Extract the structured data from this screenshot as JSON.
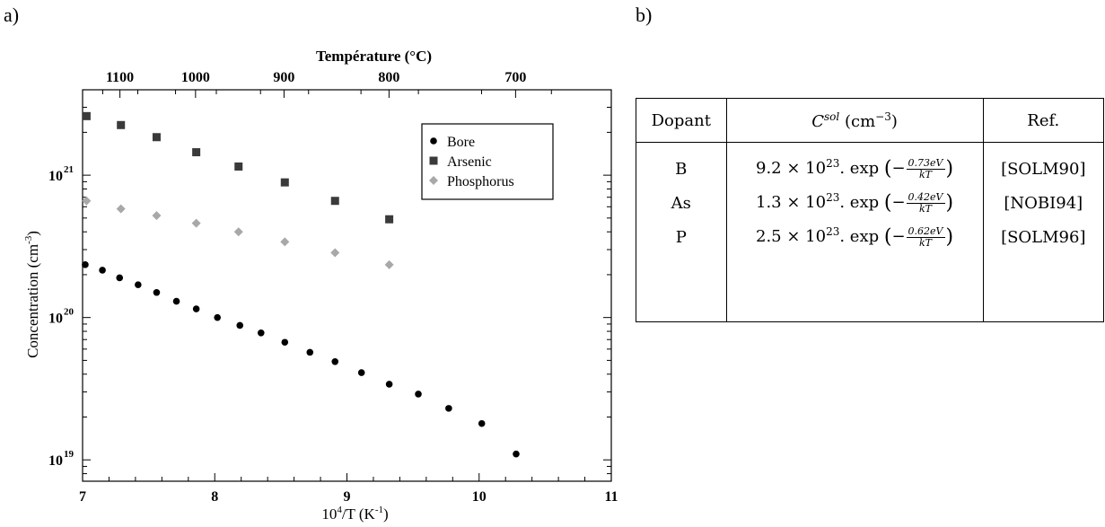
{
  "labels": {
    "a": "a)",
    "b": "b)"
  },
  "chart_data": {
    "type": "scatter",
    "top_axis_title": "Température (°C)",
    "top_ticks": [
      "1100",
      "1000",
      "900",
      "800",
      "700"
    ],
    "top_tick_celsius": [
      1100,
      1000,
      900,
      800,
      700
    ],
    "xlabel_base": "10",
    "xlabel_exp": "4",
    "xlabel_mid": "/T (K",
    "xlabel_exp2": "-1",
    "xlabel_end": ")",
    "ylabel_main": "Concentration (cm",
    "ylabel_exp": "-3",
    "ylabel_end": ")",
    "xlim": [
      7,
      11
    ],
    "ylim_log10": [
      18.85,
      21.6
    ],
    "x_ticks": [
      7,
      8,
      9,
      10,
      11
    ],
    "y_ticks": [
      {
        "value": 19,
        "base": "10",
        "exp": "19"
      },
      {
        "value": 20,
        "base": "10",
        "exp": "20"
      },
      {
        "value": 21,
        "base": "10",
        "exp": "21"
      }
    ],
    "legend_position": "top-right",
    "series": [
      {
        "name": "Bore",
        "marker": "circle",
        "color": "#000000",
        "x": [
          7.02,
          7.15,
          7.28,
          7.42,
          7.56,
          7.71,
          7.86,
          8.02,
          8.19,
          8.35,
          8.53,
          8.72,
          8.91,
          9.11,
          9.32,
          9.54,
          9.77,
          10.02,
          10.28
        ],
        "y": [
          2.35e+20,
          2.15e+20,
          1.9e+20,
          1.7e+20,
          1.5e+20,
          1.3e+20,
          1.15e+20,
          1e+20,
          8.8e+19,
          7.8e+19,
          6.7e+19,
          5.7e+19,
          4.9e+19,
          4.1e+19,
          3.4e+19,
          2.9e+19,
          2.3e+19,
          1.8e+19,
          1.1e+19
        ]
      },
      {
        "name": "Arsenic",
        "marker": "square",
        "color": "#3a3a3a",
        "x": [
          7.03,
          7.29,
          7.56,
          7.86,
          8.18,
          8.53,
          8.91,
          9.32
        ],
        "y": [
          2.6e+21,
          2.25e+21,
          1.85e+21,
          1.45e+21,
          1.15e+21,
          8.9e+20,
          6.6e+20,
          4.9e+20
        ]
      },
      {
        "name": "Phosphorus",
        "marker": "diamond",
        "color": "#a8a8a8",
        "x": [
          7.03,
          7.29,
          7.56,
          7.86,
          8.18,
          8.53,
          8.91,
          9.32
        ],
        "y": [
          6.6e+20,
          5.8e+20,
          5.2e+20,
          4.6e+20,
          4e+20,
          3.4e+20,
          2.85e+20,
          2.35e+20
        ]
      }
    ]
  },
  "table": {
    "headers": [
      "Dopant",
      "C",
      "sol",
      "(cm",
      "−3",
      ")",
      "Ref."
    ],
    "rows": [
      {
        "dopant": "B",
        "coef": "9.2 × 10",
        "exp": "23",
        "func": ". exp",
        "num": "0.73eV",
        "den": "kT",
        "ref": "[SOLM90]"
      },
      {
        "dopant": "As",
        "coef": "1.3 × 10",
        "exp": "23",
        "func": ". exp",
        "num": "0.42eV",
        "den": "kT",
        "ref": "[NOBI94]"
      },
      {
        "dopant": "P",
        "coef": "2.5 × 10",
        "exp": "23",
        "func": ". exp",
        "num": "0.62eV",
        "den": "kT",
        "ref": "[SOLM96]"
      }
    ]
  }
}
